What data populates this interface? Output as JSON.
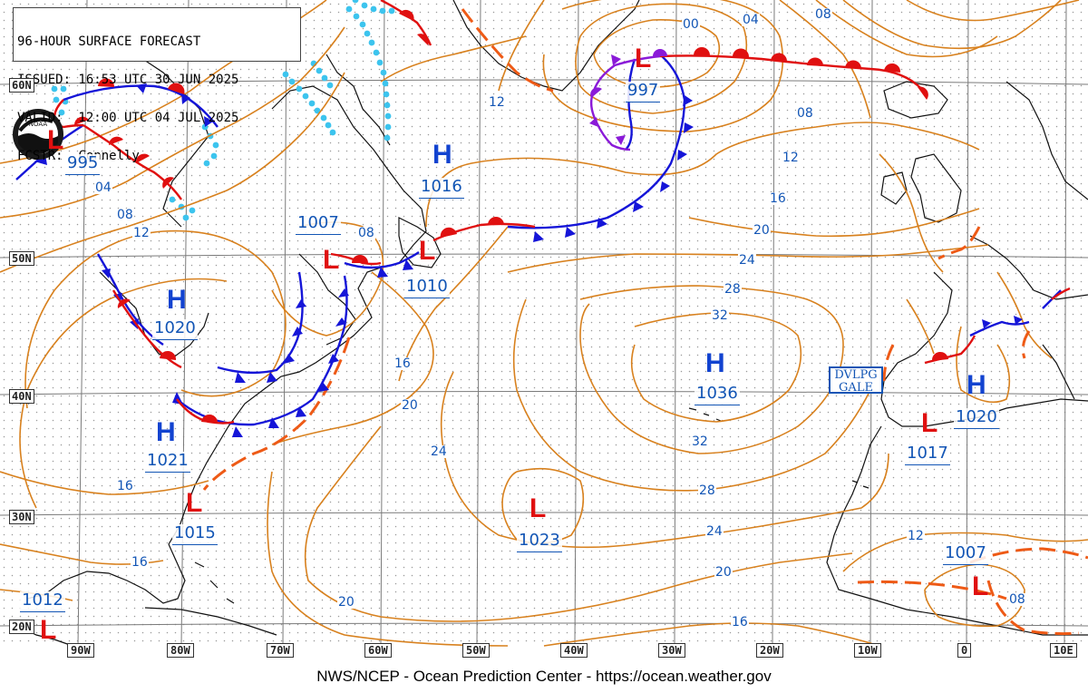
{
  "header": {
    "title": "96-HOUR SURFACE FORECAST",
    "issued": "ISSUED: 16:53 UTC 30 JUN 2025",
    "valid": "VALID:  12:00 UTC 04 JUL 2025",
    "forecaster": "FCSTR:  Connelly"
  },
  "footer": "NWS/NCEP - Ocean Prediction Center - https://ocean.weather.gov",
  "logo_text": "NOAA",
  "colors": {
    "isobar": "#d8811e",
    "warm_front": "#e01010",
    "cold_front": "#1515d8",
    "occluded_front": "#8a1ad8",
    "trough": "#ee5a16",
    "ice_edge": "#3cc4ee",
    "high": "#1243d0",
    "low": "#e01010",
    "pressure_text": "#1255b5",
    "land": "#000000"
  },
  "latitude_labels": [
    "60N",
    "50N",
    "40N",
    "30N",
    "20N"
  ],
  "longitude_labels": [
    "90W",
    "80W",
    "70W",
    "60W",
    "50W",
    "40W",
    "30W",
    "20W",
    "10W",
    "0",
    "10E"
  ],
  "pressure_systems": [
    {
      "type": "L",
      "pressure": "995"
    },
    {
      "type": "H",
      "pressure": "1016"
    },
    {
      "type": "L",
      "pressure": "997"
    },
    {
      "type": "L",
      "pressure": "1007"
    },
    {
      "type": "L",
      "pressure": "1010"
    },
    {
      "type": "H",
      "pressure": "1020"
    },
    {
      "type": "H",
      "pressure": "1021"
    },
    {
      "type": "L",
      "pressure": "1015"
    },
    {
      "type": "H",
      "pressure": "1036"
    },
    {
      "type": "L",
      "pressure": "1023"
    },
    {
      "type": "L",
      "pressure": "1012"
    },
    {
      "type": "H",
      "pressure": "1020"
    },
    {
      "type": "L",
      "pressure": "1017"
    },
    {
      "type": "L",
      "pressure": "1007"
    }
  ],
  "isobar_labels": [
    "00",
    "04",
    "08",
    "12",
    "08",
    "12",
    "16",
    "20",
    "24",
    "28",
    "32",
    "32",
    "28",
    "24",
    "20",
    "16",
    "04",
    "08",
    "12",
    "08",
    "16",
    "20",
    "24",
    "16",
    "16",
    "20",
    "12",
    "08"
  ],
  "warning_label": "DVLPG\nGALE"
}
